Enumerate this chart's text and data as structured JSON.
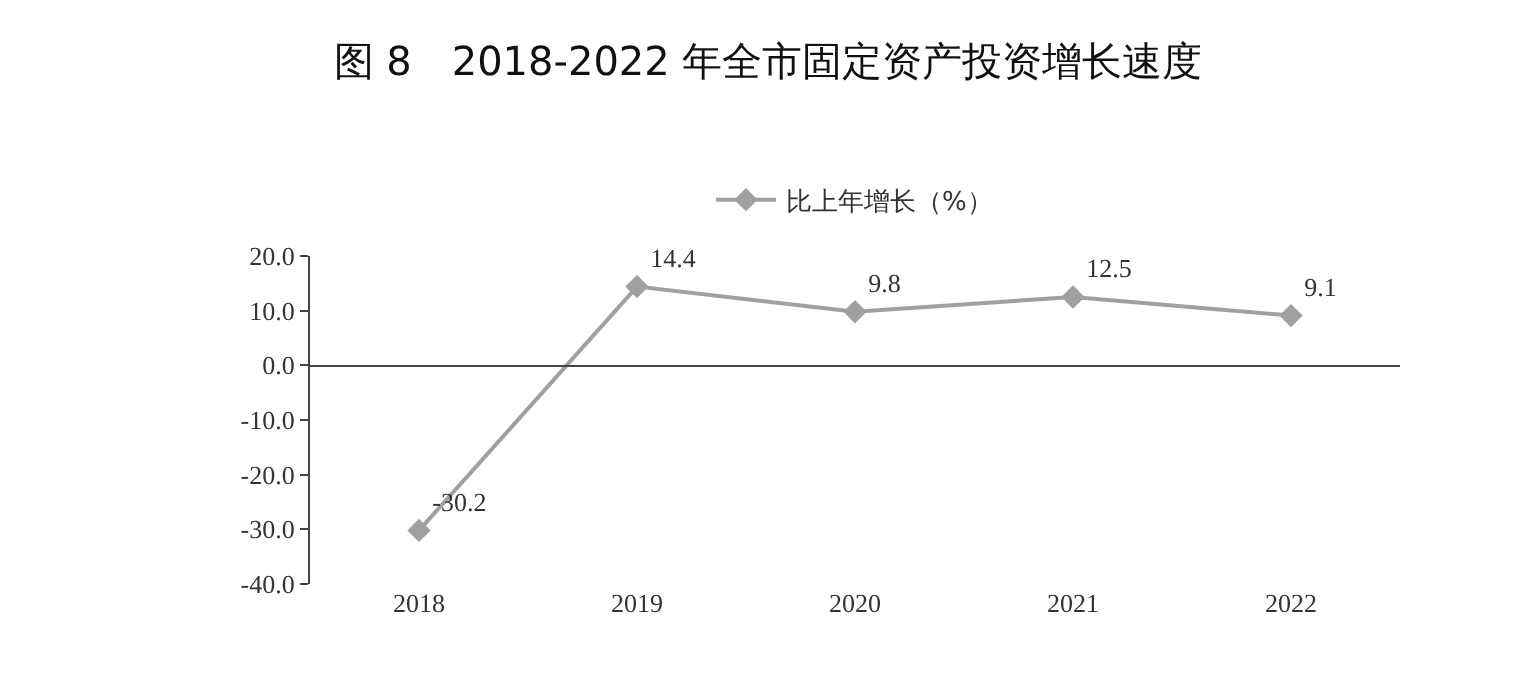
{
  "chart_data": {
    "type": "line",
    "title": "图 8　2018-2022 年全市固定资产投资增长速度",
    "categories": [
      "2018",
      "2019",
      "2020",
      "2021",
      "2022"
    ],
    "series": [
      {
        "name": "比上年增长（%）",
        "color": "#a0a0a0",
        "values": [
          -30.2,
          14.4,
          9.8,
          12.5,
          9.1
        ]
      }
    ],
    "ylim": [
      -40,
      20
    ],
    "yticks": [
      {
        "value": -40,
        "label": "-40.0"
      },
      {
        "value": -30,
        "label": "-30.0"
      },
      {
        "value": -20,
        "label": "-20.0"
      },
      {
        "value": -10,
        "label": "-10.0"
      },
      {
        "value": 0,
        "label": "0.0"
      },
      {
        "value": 10,
        "label": "10.0"
      },
      {
        "value": 20,
        "label": "20.0"
      }
    ],
    "data_labels": true,
    "marker": "diamond",
    "legend": "top"
  }
}
